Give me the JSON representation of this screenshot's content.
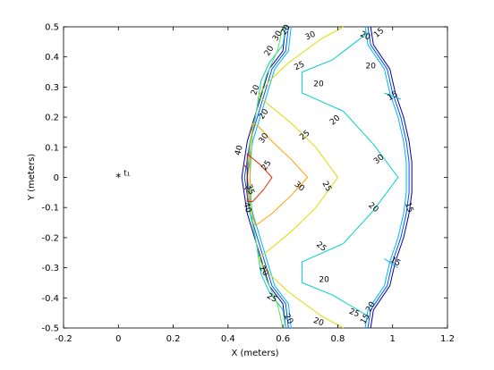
{
  "chart_data": {
    "type": "contour",
    "xlabel": "X (meters)",
    "ylabel": "Y (meters)",
    "xlim": [
      -0.2,
      1.2
    ],
    "ylim": [
      -0.5,
      0.5
    ],
    "x_ticks": [
      "-0.2",
      "0",
      "0.2",
      "0.4",
      "0.6",
      "0.8",
      "1",
      "1.2"
    ],
    "y_ticks": [
      "-0.5",
      "-0.4",
      "-0.3",
      "-0.2",
      "-0.1",
      "0",
      "0.1",
      "0.2",
      "0.3",
      "0.4",
      "0.5"
    ],
    "grid": false,
    "source": {
      "x": 0.0,
      "y": 0.0,
      "label": "t₁",
      "marker": "*"
    },
    "contours": [
      {
        "level": "15",
        "color": "#0000a8",
        "points": [
          [
            0.61,
            0.5
          ],
          [
            0.6,
            0.42
          ],
          [
            0.55,
            0.36
          ],
          [
            0.53,
            0.3
          ],
          [
            0.51,
            0.24
          ],
          [
            0.49,
            0.18
          ],
          [
            0.47,
            0.12
          ],
          [
            0.46,
            0.06
          ],
          [
            0.45,
            0.0
          ],
          [
            0.46,
            -0.06
          ],
          [
            0.47,
            -0.12
          ],
          [
            0.49,
            -0.18
          ],
          [
            0.51,
            -0.24
          ],
          [
            0.53,
            -0.3
          ],
          [
            0.55,
            -0.36
          ],
          [
            0.6,
            -0.42
          ],
          [
            0.61,
            -0.5
          ]
        ]
      },
      {
        "level": "15",
        "color": "#0000a8",
        "points": [
          [
            0.92,
            0.5
          ],
          [
            0.93,
            0.44
          ],
          [
            0.99,
            0.36
          ],
          [
            1.01,
            0.28
          ],
          [
            1.04,
            0.2
          ],
          [
            1.06,
            0.12
          ],
          [
            1.07,
            0.05
          ],
          [
            1.07,
            0.0
          ],
          [
            1.07,
            -0.05
          ],
          [
            1.06,
            -0.12
          ],
          [
            1.04,
            -0.2
          ],
          [
            1.01,
            -0.28
          ],
          [
            0.99,
            -0.36
          ],
          [
            0.93,
            -0.44
          ],
          [
            0.92,
            -0.5
          ]
        ]
      },
      {
        "level": "15",
        "color": "#0050ff",
        "points": [
          [
            0.62,
            0.5
          ],
          [
            0.61,
            0.42
          ],
          [
            0.56,
            0.36
          ],
          [
            0.54,
            0.3
          ],
          [
            0.52,
            0.24
          ],
          [
            0.5,
            0.18
          ],
          [
            0.48,
            0.12
          ],
          [
            0.47,
            0.06
          ],
          [
            0.46,
            0.0
          ],
          [
            0.47,
            -0.06
          ],
          [
            0.48,
            -0.12
          ],
          [
            0.5,
            -0.18
          ],
          [
            0.52,
            -0.24
          ],
          [
            0.54,
            -0.3
          ],
          [
            0.56,
            -0.36
          ],
          [
            0.61,
            -0.42
          ],
          [
            0.62,
            -0.5
          ]
        ]
      },
      {
        "level": "15",
        "color": "#0050ff",
        "points": [
          [
            0.91,
            0.5
          ],
          [
            0.92,
            0.44
          ],
          [
            0.98,
            0.36
          ],
          [
            1.0,
            0.28
          ],
          [
            1.03,
            0.2
          ],
          [
            1.05,
            0.12
          ],
          [
            1.06,
            0.05
          ],
          [
            1.06,
            0.0
          ],
          [
            1.06,
            -0.05
          ],
          [
            1.05,
            -0.12
          ],
          [
            1.03,
            -0.2
          ],
          [
            1.0,
            -0.28
          ],
          [
            0.98,
            -0.36
          ],
          [
            0.92,
            -0.44
          ],
          [
            0.91,
            -0.5
          ]
        ]
      },
      {
        "level": "15",
        "color": "#00b4ff",
        "points": [
          [
            0.63,
            0.5
          ],
          [
            0.62,
            0.42
          ],
          [
            0.57,
            0.36
          ],
          [
            0.55,
            0.3
          ],
          [
            0.53,
            0.24
          ],
          [
            0.51,
            0.18
          ],
          [
            0.49,
            0.12
          ],
          [
            0.48,
            0.06
          ],
          [
            0.47,
            0.0
          ],
          [
            0.48,
            -0.06
          ],
          [
            0.49,
            -0.12
          ],
          [
            0.51,
            -0.18
          ],
          [
            0.53,
            -0.24
          ],
          [
            0.55,
            -0.3
          ],
          [
            0.57,
            -0.36
          ],
          [
            0.62,
            -0.42
          ],
          [
            0.63,
            -0.5
          ]
        ]
      },
      {
        "level": "15",
        "color": "#00b4ff",
        "points": [
          [
            0.9,
            0.5
          ],
          [
            0.91,
            0.44
          ],
          [
            0.97,
            0.36
          ],
          [
            0.99,
            0.28
          ],
          [
            1.02,
            0.2
          ],
          [
            1.04,
            0.12
          ],
          [
            1.05,
            0.05
          ],
          [
            1.05,
            0.0
          ],
          [
            1.05,
            -0.05
          ],
          [
            1.04,
            -0.12
          ],
          [
            1.02,
            -0.2
          ],
          [
            0.99,
            -0.28
          ],
          [
            0.97,
            -0.36
          ],
          [
            0.91,
            -0.44
          ],
          [
            0.9,
            -0.5
          ]
        ]
      },
      {
        "level": "15",
        "color": "#00b4ff",
        "points": [
          [
            0.97,
            0.28
          ],
          [
            1.03,
            0.26
          ]
        ]
      },
      {
        "level": "15",
        "color": "#00b4ff",
        "points": [
          [
            0.97,
            -0.27
          ],
          [
            1.02,
            -0.3
          ]
        ]
      },
      {
        "level": "20",
        "color": "#00d2c8",
        "points": [
          [
            0.61,
            0.5
          ],
          [
            0.6,
            0.44
          ],
          [
            0.55,
            0.38
          ],
          [
            0.52,
            0.32
          ],
          [
            0.5,
            0.2
          ],
          [
            0.48,
            0.12
          ],
          [
            0.47,
            0.0
          ],
          [
            0.48,
            -0.12
          ],
          [
            0.5,
            -0.2
          ],
          [
            0.52,
            -0.32
          ],
          [
            0.55,
            -0.38
          ],
          [
            0.6,
            -0.44
          ],
          [
            0.61,
            -0.5
          ]
        ]
      },
      {
        "level": "20",
        "color": "#00d2c8",
        "points": [
          [
            0.91,
            0.48
          ],
          [
            0.78,
            0.39
          ],
          [
            0.67,
            0.35
          ],
          [
            0.67,
            0.28
          ],
          [
            0.82,
            0.22
          ],
          [
            0.93,
            0.11
          ],
          [
            1.02,
            0.0
          ],
          [
            0.93,
            -0.11
          ],
          [
            0.82,
            -0.22
          ],
          [
            0.67,
            -0.28
          ],
          [
            0.67,
            -0.35
          ],
          [
            0.78,
            -0.39
          ],
          [
            0.91,
            -0.46
          ]
        ]
      },
      {
        "level": "25",
        "color": "#64dc64",
        "points": [
          [
            0.6,
            0.5
          ],
          [
            0.58,
            0.42
          ],
          [
            0.54,
            0.34
          ],
          [
            0.51,
            0.25
          ],
          [
            0.49,
            0.16
          ],
          [
            0.48,
            0.0
          ],
          [
            0.49,
            -0.16
          ],
          [
            0.51,
            -0.25
          ],
          [
            0.54,
            -0.34
          ],
          [
            0.58,
            -0.42
          ],
          [
            0.6,
            -0.5
          ]
        ]
      },
      {
        "level": "25",
        "color": "#dcdc00",
        "points": [
          [
            0.82,
            0.5
          ],
          [
            0.74,
            0.46
          ],
          [
            0.62,
            0.38
          ],
          [
            0.55,
            0.32
          ],
          [
            0.51,
            0.27
          ],
          [
            0.63,
            0.18
          ],
          [
            0.72,
            0.1
          ],
          [
            0.8,
            0.0
          ],
          [
            0.72,
            -0.1
          ],
          [
            0.63,
            -0.18
          ],
          [
            0.51,
            -0.27
          ],
          [
            0.55,
            -0.32
          ],
          [
            0.62,
            -0.38
          ],
          [
            0.74,
            -0.46
          ],
          [
            0.82,
            -0.5
          ]
        ]
      },
      {
        "level": "30",
        "color": "#ffa000",
        "points": [
          [
            0.49,
            0.18
          ],
          [
            0.51,
            0.17
          ],
          [
            0.56,
            0.12
          ],
          [
            0.63,
            0.06
          ],
          [
            0.69,
            0.0
          ],
          [
            0.63,
            -0.06
          ],
          [
            0.56,
            -0.12
          ],
          [
            0.5,
            -0.16
          ],
          [
            0.48,
            -0.1
          ],
          [
            0.48,
            0.0
          ],
          [
            0.48,
            0.1
          ],
          [
            0.49,
            0.18
          ]
        ]
      },
      {
        "level": "35",
        "color": "#e62800",
        "points": [
          [
            0.47,
            0.08
          ],
          [
            0.48,
            0.07
          ],
          [
            0.52,
            0.04
          ],
          [
            0.56,
            0.0
          ],
          [
            0.53,
            -0.04
          ],
          [
            0.49,
            -0.08
          ],
          [
            0.47,
            -0.08
          ],
          [
            0.47,
            0.0
          ],
          [
            0.47,
            0.08
          ]
        ]
      },
      {
        "level": "40",
        "color": "#a00000",
        "points": [
          [
            0.46,
            0.04
          ],
          [
            0.47,
            0.03
          ],
          [
            0.47,
            0.0
          ],
          [
            0.47,
            -0.03
          ],
          [
            0.46,
            -0.04
          ]
        ]
      }
    ],
    "contour_labels": [
      {
        "text": "30",
        "x": 0.7,
        "y": 0.47,
        "angle": -25
      },
      {
        "text": "25",
        "x": 0.66,
        "y": 0.37,
        "angle": -25
      },
      {
        "text": "20",
        "x": 0.61,
        "y": 0.49,
        "angle": -60
      },
      {
        "text": "30",
        "x": 0.58,
        "y": 0.47,
        "angle": -60
      },
      {
        "text": "20",
        "x": 0.55,
        "y": 0.42,
        "angle": -60
      },
      {
        "text": "20",
        "x": 0.9,
        "y": 0.47,
        "angle": 25
      },
      {
        "text": "20",
        "x": 0.92,
        "y": 0.37,
        "angle": 0
      },
      {
        "text": "15",
        "x": 0.95,
        "y": 0.48,
        "angle": -40
      },
      {
        "text": "20",
        "x": 0.73,
        "y": 0.31,
        "angle": 0
      },
      {
        "text": "15",
        "x": 1.0,
        "y": 0.27,
        "angle": -30
      },
      {
        "text": "20",
        "x": 0.5,
        "y": 0.29,
        "angle": -70
      },
      {
        "text": "20",
        "x": 0.53,
        "y": 0.21,
        "angle": -55
      },
      {
        "text": "20",
        "x": 0.79,
        "y": 0.19,
        "angle": -40
      },
      {
        "text": "30",
        "x": 0.53,
        "y": 0.13,
        "angle": -55
      },
      {
        "text": "25",
        "x": 0.68,
        "y": 0.14,
        "angle": -40
      },
      {
        "text": "30",
        "x": 0.95,
        "y": 0.06,
        "angle": -40
      },
      {
        "text": "40",
        "x": 0.44,
        "y": 0.09,
        "angle": -75
      },
      {
        "text": "25",
        "x": 0.54,
        "y": 0.04,
        "angle": -55
      },
      {
        "text": "30",
        "x": 0.66,
        "y": -0.03,
        "angle": 40
      },
      {
        "text": "25",
        "x": 0.76,
        "y": -0.03,
        "angle": 60
      },
      {
        "text": "35",
        "x": 0.48,
        "y": -0.04,
        "angle": 70
      },
      {
        "text": "40",
        "x": 0.47,
        "y": -0.1,
        "angle": 75
      },
      {
        "text": "20",
        "x": 0.93,
        "y": -0.1,
        "angle": 40
      },
      {
        "text": "15",
        "x": 1.06,
        "y": -0.1,
        "angle": 70
      },
      {
        "text": "25",
        "x": 0.74,
        "y": -0.23,
        "angle": 40
      },
      {
        "text": "15",
        "x": 1.01,
        "y": -0.28,
        "angle": 30
      },
      {
        "text": "20",
        "x": 0.53,
        "y": -0.31,
        "angle": 60
      },
      {
        "text": "20",
        "x": 0.75,
        "y": -0.34,
        "angle": 0
      },
      {
        "text": "25",
        "x": 0.56,
        "y": -0.4,
        "angle": 30
      },
      {
        "text": "25",
        "x": 0.86,
        "y": -0.45,
        "angle": 20
      },
      {
        "text": "20",
        "x": 0.92,
        "y": -0.43,
        "angle": -60
      },
      {
        "text": "15",
        "x": 0.9,
        "y": -0.47,
        "angle": -60
      },
      {
        "text": "20",
        "x": 0.62,
        "y": -0.47,
        "angle": 60
      },
      {
        "text": "20",
        "x": 0.73,
        "y": -0.48,
        "angle": 20
      }
    ]
  }
}
